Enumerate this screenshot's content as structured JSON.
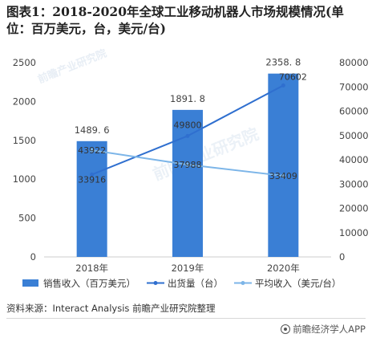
{
  "title": "图表1：2018-2020年全球工业移动机器人市场规模情况(单位：百万美元，台，美元/台)",
  "source": "资料来源：Interact Analysis 前瞻产业研究院整理",
  "brand": {
    "icon": "qianzhan-logo-icon",
    "label": "前瞻经济学人APP"
  },
  "watermark": "前瞻产业研究院",
  "colors": {
    "bar": "#3a7fd5",
    "shipment": "#2f6fcf",
    "avg": "#7cb5e8",
    "axis": "#cccccc",
    "text": "#444444"
  },
  "chart_data": {
    "type": "bar",
    "categories": [
      "2018年",
      "2019年",
      "2020年"
    ],
    "series": [
      {
        "name": "销售收入（百万美元）",
        "type": "bar",
        "axis": "left",
        "values": [
          1489.6,
          1891.8,
          2358.8
        ],
        "labels": [
          "1489. 6",
          "1891. 8",
          "2358. 8"
        ]
      },
      {
        "name": "出货量（台）",
        "type": "line",
        "axis": "right",
        "values": [
          33916,
          49800,
          70602
        ],
        "labels": [
          "33916",
          "49800",
          "70602"
        ]
      },
      {
        "name": "平均收入（美元/台）",
        "type": "line",
        "axis": "right",
        "values": [
          43922,
          37988,
          33409
        ],
        "labels": [
          "43922",
          "37988",
          "33409"
        ]
      }
    ],
    "y_left": {
      "min": 0,
      "max": 2500,
      "ticks": [
        "0",
        "500",
        "1000",
        "1500",
        "2000",
        "2500"
      ]
    },
    "y_right": {
      "min": 0,
      "max": 80000,
      "ticks": [
        "0",
        "10000",
        "20000",
        "30000",
        "40000",
        "50000",
        "60000",
        "70000",
        "80000"
      ]
    },
    "grid": false,
    "legend": "bottom"
  }
}
